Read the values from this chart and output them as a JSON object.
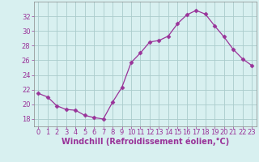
{
  "x": [
    0,
    1,
    2,
    3,
    4,
    5,
    6,
    7,
    8,
    9,
    10,
    11,
    12,
    13,
    14,
    15,
    16,
    17,
    18,
    19,
    20,
    21,
    22,
    23
  ],
  "y": [
    21.5,
    21.0,
    19.8,
    19.3,
    19.2,
    18.5,
    18.2,
    18.0,
    20.3,
    22.3,
    25.7,
    27.0,
    28.5,
    28.7,
    29.3,
    31.0,
    32.2,
    32.8,
    32.3,
    30.7,
    29.2,
    27.5,
    26.2,
    25.3
  ],
  "line_color": "#993399",
  "marker": "D",
  "marker_size": 2.5,
  "bg_color": "#d8f0f0",
  "grid_color": "#aacccc",
  "tick_color": "#993399",
  "label_color": "#993399",
  "xlabel": "Windchill (Refroidissement éolien,°C)",
  "ylim": [
    17,
    34
  ],
  "yticks": [
    18,
    20,
    22,
    24,
    26,
    28,
    30,
    32
  ],
  "xticks": [
    0,
    1,
    2,
    3,
    4,
    5,
    6,
    7,
    8,
    9,
    10,
    11,
    12,
    13,
    14,
    15,
    16,
    17,
    18,
    19,
    20,
    21,
    22,
    23
  ],
  "spine_color": "#888888",
  "tick_fontsize": 6.0,
  "xlabel_fontsize": 7.0
}
